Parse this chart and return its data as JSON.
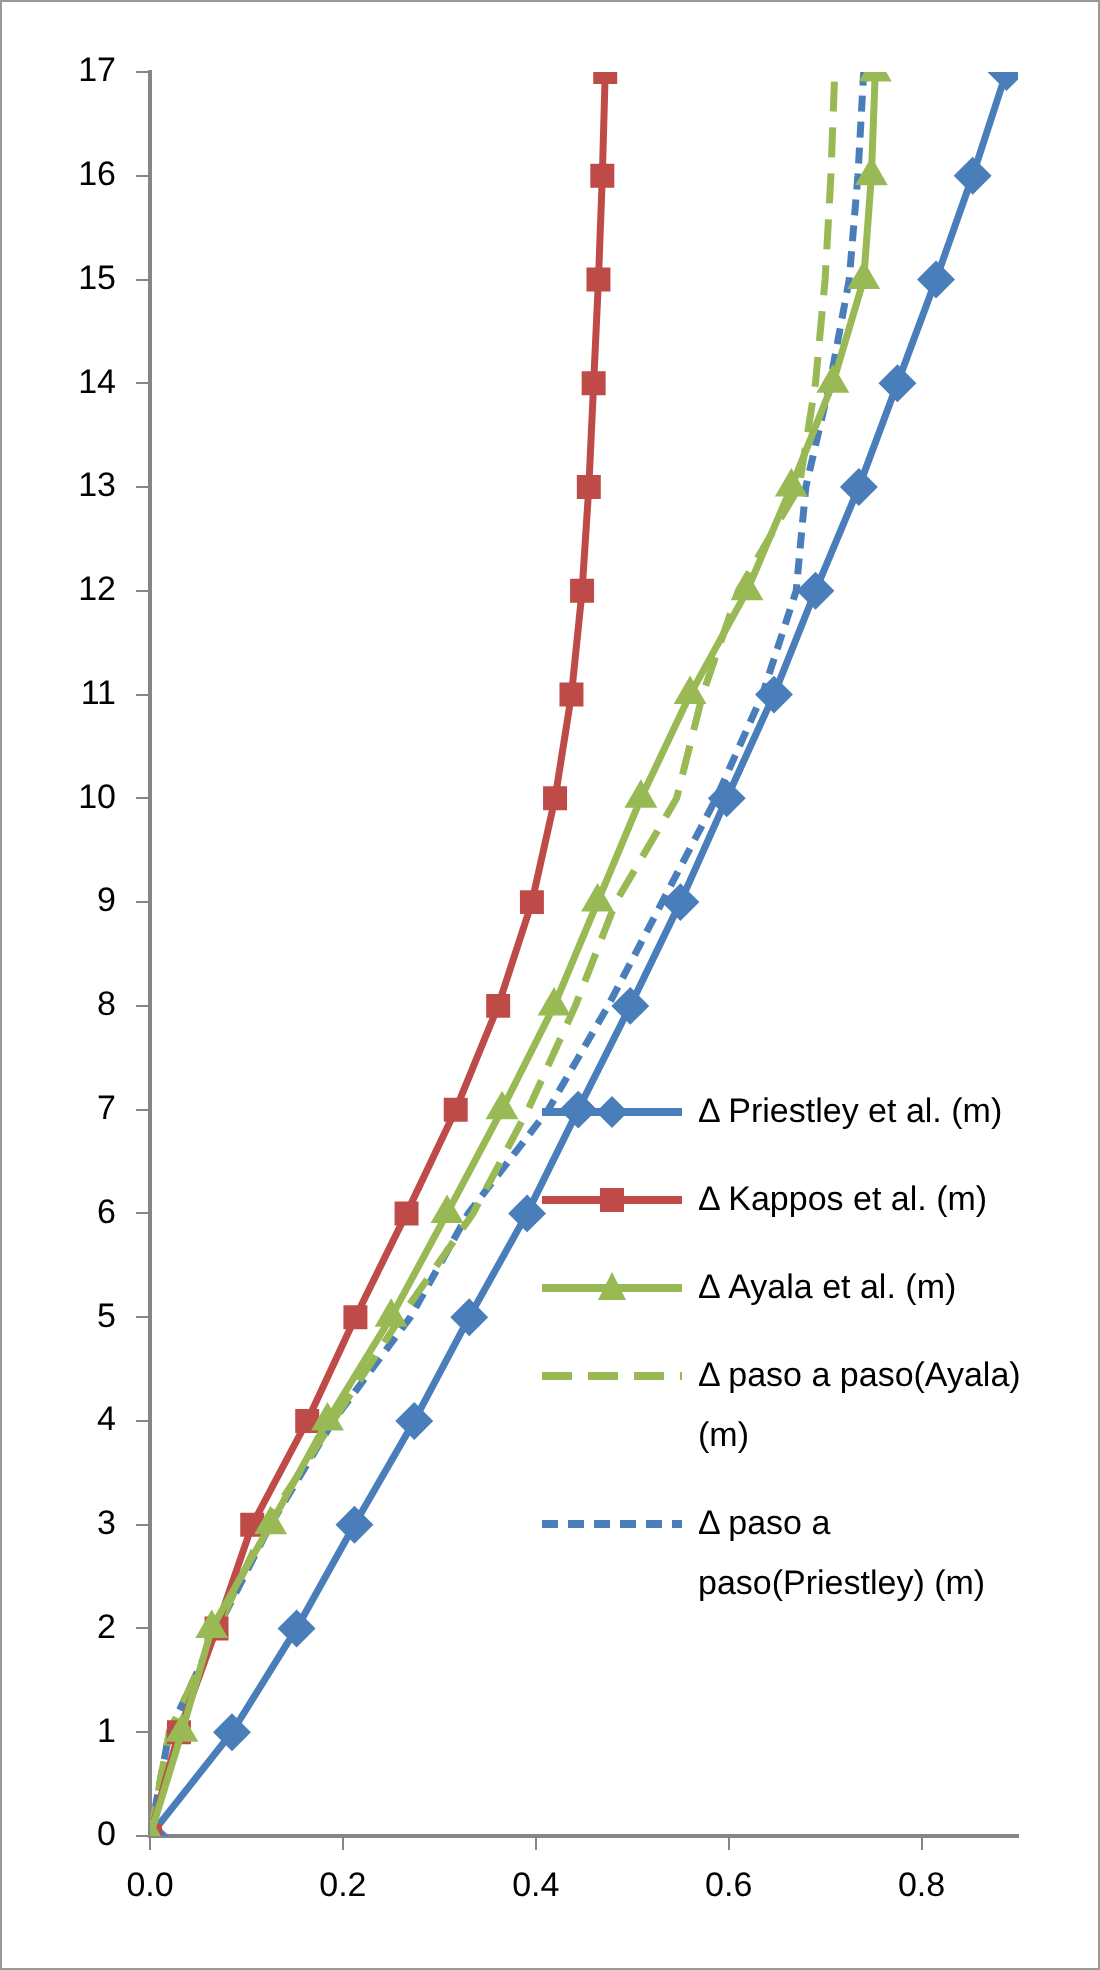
{
  "chart_data": {
    "type": "line",
    "xlim": [
      0,
      0.9
    ],
    "xticks": [
      {
        "value": 0,
        "label": "0.0"
      },
      {
        "value": 0.2,
        "label": "0.2"
      },
      {
        "value": 0.4,
        "label": "0.4"
      },
      {
        "value": 0.6,
        "label": "0.6"
      },
      {
        "value": 0.8,
        "label": "0.8"
      }
    ],
    "ylim": [
      0,
      17
    ],
    "yticks": [
      0,
      1,
      2,
      3,
      4,
      5,
      6,
      7,
      8,
      9,
      10,
      11,
      12,
      13,
      14,
      15,
      16,
      17
    ],
    "legend": "right",
    "series": [
      {
        "name": "Δ Priestley et al. (m)",
        "color": "#4a7ebb",
        "marker": "diamond",
        "line_style": "solid",
        "x": [
          0,
          0.085,
          0.152,
          0.212,
          0.274,
          0.331,
          0.391,
          0.444,
          0.498,
          0.55,
          0.598,
          0.647,
          0.69,
          0.735,
          0.775,
          0.815,
          0.853,
          0.888
        ],
        "values": [
          0,
          1,
          2,
          3,
          4,
          5,
          6,
          7,
          8,
          9,
          10,
          11,
          12,
          13,
          14,
          15,
          16,
          17
        ]
      },
      {
        "name": "Δ Kappos et al. (m)",
        "color": "#be4b48",
        "marker": "square",
        "line_style": "solid",
        "x": [
          0,
          0.03,
          0.069,
          0.106,
          0.163,
          0.213,
          0.266,
          0.317,
          0.361,
          0.396,
          0.42,
          0.437,
          0.448,
          0.455,
          0.46,
          0.465,
          0.469,
          0.472
        ],
        "values": [
          0,
          1,
          2,
          3,
          4,
          5,
          6,
          7,
          8,
          9,
          10,
          11,
          12,
          13,
          14,
          15,
          16,
          17
        ]
      },
      {
        "name": "Δ Ayala et al. (m)",
        "color": "#98b954",
        "marker": "triangle",
        "line_style": "solid",
        "x": [
          0,
          0.033,
          0.064,
          0.125,
          0.184,
          0.25,
          0.308,
          0.365,
          0.419,
          0.464,
          0.509,
          0.56,
          0.619,
          0.665,
          0.708,
          0.74,
          0.748,
          0.752
        ],
        "values": [
          0,
          1,
          2,
          3,
          4,
          5,
          6,
          7,
          8,
          9,
          10,
          11,
          12,
          13,
          14,
          15,
          16,
          17
        ]
      },
      {
        "name": "Δ paso a paso(Ayala) (m)",
        "color": "#98b954",
        "marker": "none",
        "line_style": "dashed",
        "x": [
          0,
          0.02,
          0.07,
          0.12,
          0.19,
          0.26,
          0.335,
          0.392,
          0.441,
          0.483,
          0.546,
          0.573,
          0.61,
          0.673,
          0.69,
          0.7,
          0.706,
          0.71
        ],
        "values": [
          0,
          1,
          2,
          3,
          4,
          5,
          6,
          7,
          8,
          9,
          10,
          11,
          12,
          13,
          14,
          15,
          16,
          17
        ]
      },
      {
        "name": "Δ paso a paso(Priestley) (m)",
        "color": "#4a7ebb",
        "marker": "none",
        "line_style": "dotted",
        "x": [
          0,
          0.02,
          0.07,
          0.125,
          0.19,
          0.27,
          0.33,
          0.413,
          0.475,
          0.531,
          0.587,
          0.635,
          0.67,
          0.68,
          0.705,
          0.725,
          0.734,
          0.74
        ],
        "values": [
          0,
          1,
          2,
          3,
          4,
          5,
          6,
          7,
          8,
          9,
          10,
          11,
          12,
          13,
          14,
          15,
          16,
          17
        ]
      }
    ]
  }
}
